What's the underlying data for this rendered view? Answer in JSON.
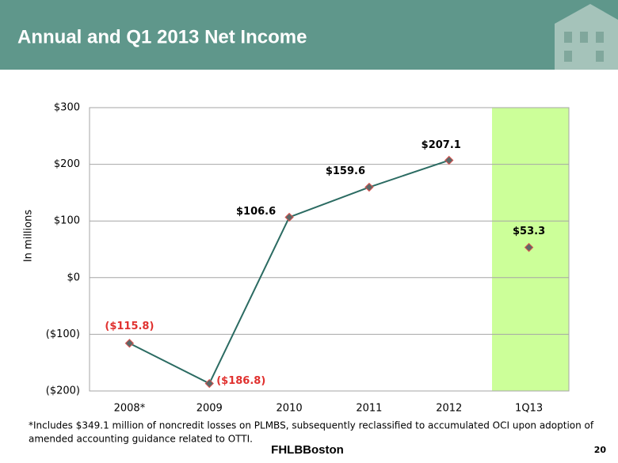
{
  "chart_data": {
    "type": "line",
    "title": "Annual and Q1 2013 Net Income",
    "y_label": "In millions",
    "categories": [
      "2008*",
      "2009",
      "2010",
      "2011",
      "2012",
      "1Q13"
    ],
    "series": [
      {
        "color": "#2b6b62",
        "values": [
          -115.8,
          -186.8,
          106.6,
          159.6,
          207.1,
          null
        ],
        "value_labels": [
          "($115.8)",
          "($186.8)",
          "$106.6",
          "$159.6",
          "$207.1",
          null
        ]
      },
      {
        "color": "#2b6b62",
        "values": [
          null,
          null,
          null,
          null,
          null,
          53.3
        ],
        "value_labels": [
          null,
          null,
          null,
          null,
          null,
          "$53.3"
        ]
      }
    ],
    "ylim": [
      -200,
      300
    ],
    "yticks": [
      {
        "value": -200,
        "label": "($200)"
      },
      {
        "value": -100,
        "label": "($100)"
      },
      {
        "value": 0,
        "label": "$0"
      },
      {
        "value": 100,
        "label": "$100"
      },
      {
        "value": 200,
        "label": "$200"
      },
      {
        "value": 300,
        "label": "$300"
      }
    ],
    "grid": true
  },
  "footnote": [
    "*Includes $349.1 million of noncredit losses on PLMBS, subsequently reclassified to accumulated OCI upon adoption of",
    "amended accounting guidance related to OTTI."
  ],
  "logo": "FHLBBoston",
  "page_number": "20"
}
